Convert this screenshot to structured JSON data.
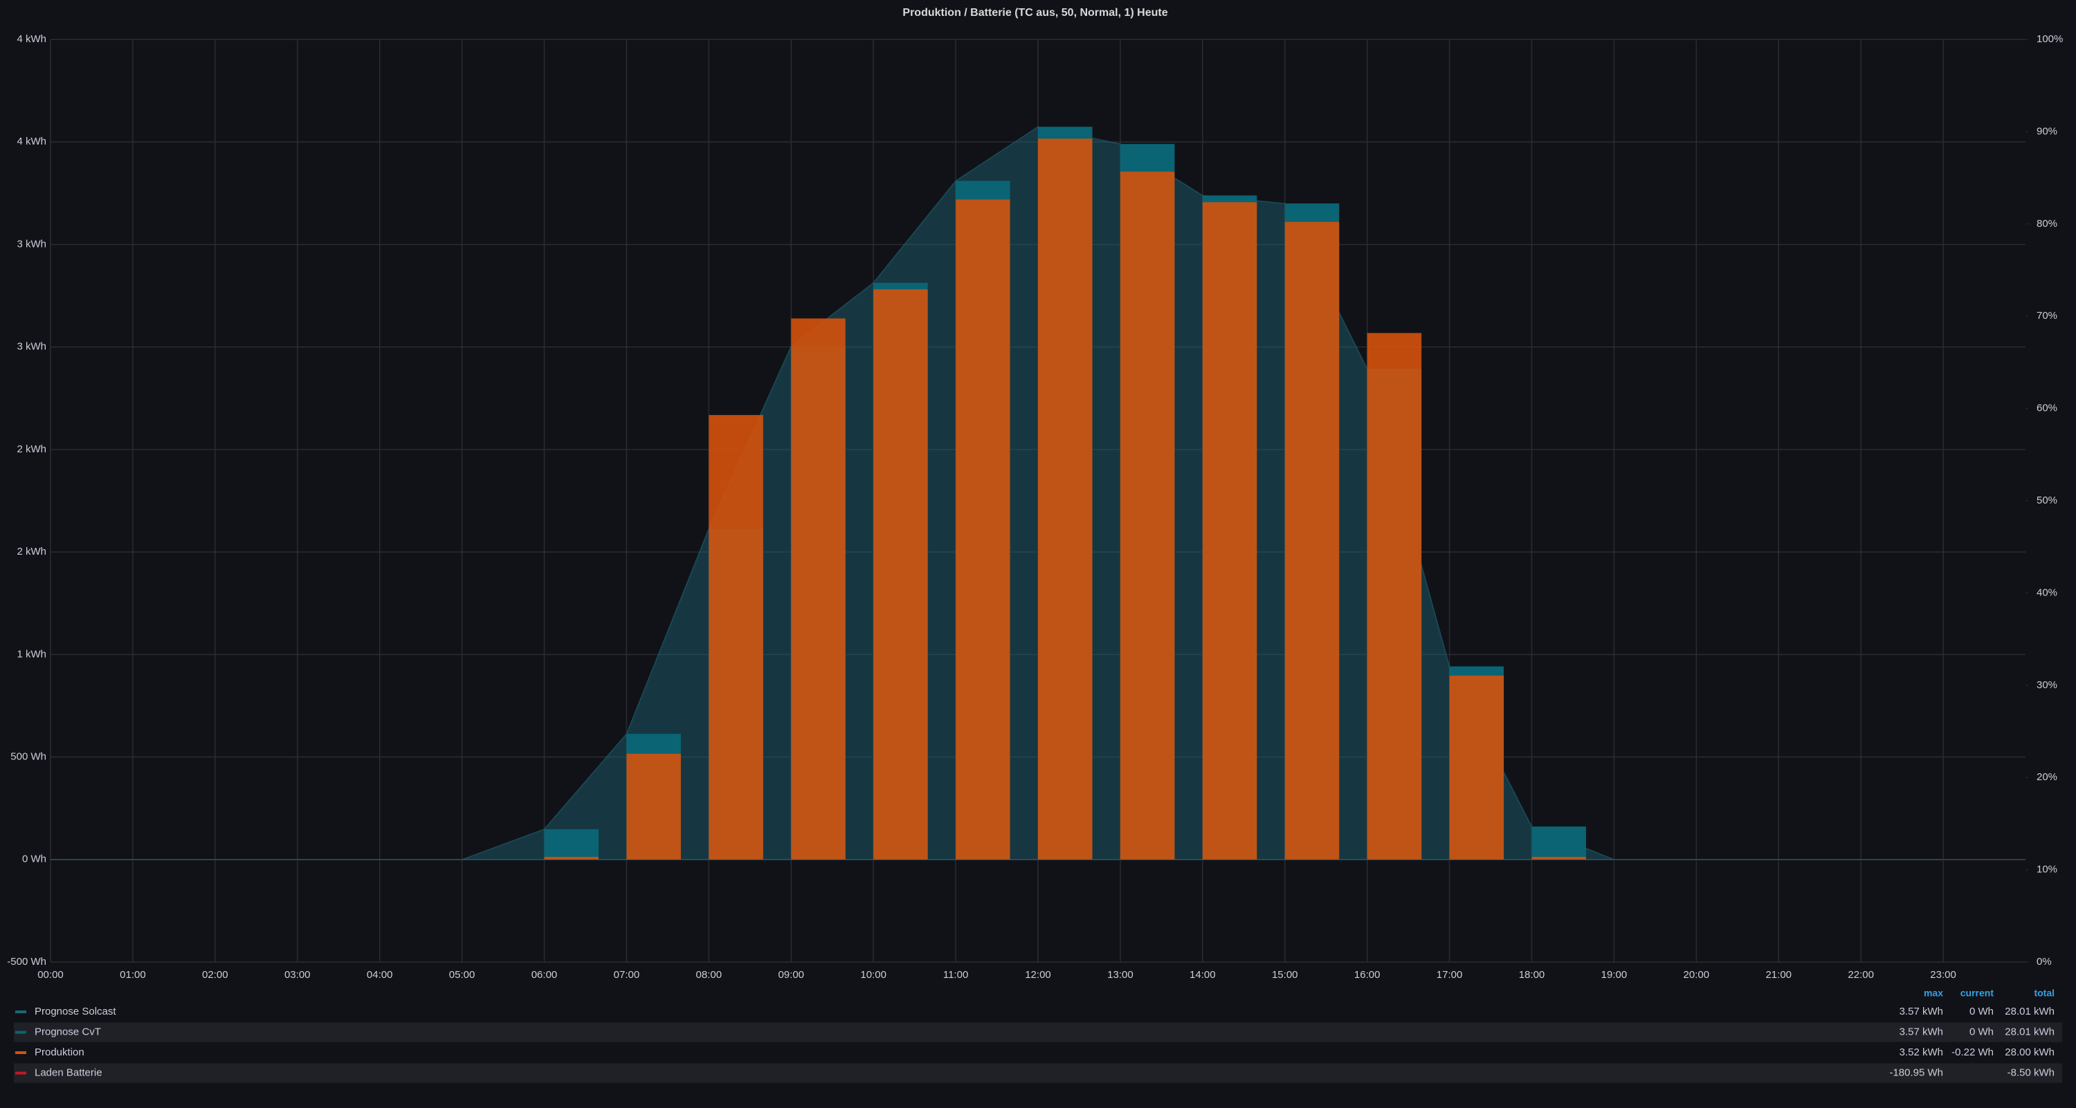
{
  "chart_data": {
    "type": "bar",
    "title": "Produktion / Batterie (TC aus, 50, Normal, 1) Heute",
    "x": [
      0,
      1,
      2,
      3,
      4,
      5,
      6,
      7,
      8,
      9,
      10,
      11,
      12,
      13,
      14,
      15,
      16,
      17,
      18,
      19,
      20,
      21,
      22,
      23
    ],
    "xlim": [
      0,
      24
    ],
    "xticks": [
      {
        "value": 0,
        "label": "00:00"
      },
      {
        "value": 1,
        "label": "01:00"
      },
      {
        "value": 2,
        "label": "02:00"
      },
      {
        "value": 3,
        "label": "03:00"
      },
      {
        "value": 4,
        "label": "04:00"
      },
      {
        "value": 5,
        "label": "05:00"
      },
      {
        "value": 6,
        "label": "06:00"
      },
      {
        "value": 7,
        "label": "07:00"
      },
      {
        "value": 8,
        "label": "08:00"
      },
      {
        "value": 9,
        "label": "09:00"
      },
      {
        "value": 10,
        "label": "10:00"
      },
      {
        "value": 11,
        "label": "11:00"
      },
      {
        "value": 12,
        "label": "12:00"
      },
      {
        "value": 13,
        "label": "13:00"
      },
      {
        "value": 14,
        "label": "14:00"
      },
      {
        "value": 15,
        "label": "15:00"
      },
      {
        "value": 16,
        "label": "16:00"
      },
      {
        "value": 17,
        "label": "17:00"
      },
      {
        "value": 18,
        "label": "18:00"
      },
      {
        "value": 19,
        "label": "19:00"
      },
      {
        "value": 20,
        "label": "20:00"
      },
      {
        "value": 21,
        "label": "21:00"
      },
      {
        "value": 22,
        "label": "22:00"
      },
      {
        "value": 23,
        "label": "23:00"
      }
    ],
    "ylim": [
      -500,
      4000
    ],
    "yticks": [
      {
        "value": -500,
        "label": "-500 Wh"
      },
      {
        "value": 0,
        "label": "0 Wh"
      },
      {
        "value": 500,
        "label": "500 Wh"
      },
      {
        "value": 1000,
        "label": "1 kWh"
      },
      {
        "value": 1500,
        "label": "2 kWh"
      },
      {
        "value": 2000,
        "label": "2 kWh"
      },
      {
        "value": 2500,
        "label": "3 kWh"
      },
      {
        "value": 3000,
        "label": "3 kWh"
      },
      {
        "value": 3500,
        "label": "4 kWh"
      },
      {
        "value": 4000,
        "label": "4 kWh"
      }
    ],
    "y2lim": [
      0,
      100
    ],
    "y2ticks": [
      {
        "value": 0,
        "label": "0%"
      },
      {
        "value": 10,
        "label": "10%"
      },
      {
        "value": 20,
        "label": "20%"
      },
      {
        "value": 30,
        "label": "30%"
      },
      {
        "value": 40,
        "label": "40%"
      },
      {
        "value": 50,
        "label": "50%"
      },
      {
        "value": 60,
        "label": "60%"
      },
      {
        "value": 70,
        "label": "70%"
      },
      {
        "value": 80,
        "label": "80%"
      },
      {
        "value": 90,
        "label": "90%"
      },
      {
        "value": 100,
        "label": "100%"
      }
    ],
    "grid": true,
    "legend_columns": [
      "max",
      "current",
      "total"
    ],
    "series": [
      {
        "name": "Prognose Solcast",
        "type": "area",
        "color": "#1c6678",
        "values": [
          0,
          0,
          0,
          0,
          0,
          0,
          148,
          613,
          1613,
          2503,
          2813,
          3310,
          3574,
          3490,
          3239,
          3200,
          2394,
          942,
          161,
          0,
          0,
          0,
          0,
          0
        ],
        "legend_values": [
          "3.57 kWh",
          "0 Wh",
          "28.01 kWh"
        ]
      },
      {
        "name": "Prognose CvT",
        "type": "bar",
        "color": "#0b6474",
        "values": [
          0,
          0,
          0,
          0,
          0,
          0,
          148,
          613,
          1613,
          2503,
          2813,
          3310,
          3574,
          3490,
          3239,
          3200,
          2394,
          942,
          161,
          0,
          0,
          0,
          0,
          0
        ],
        "legend_values": [
          "3.57 kWh",
          "0 Wh",
          "28.01 kWh"
        ]
      },
      {
        "name": "Produktion",
        "type": "bar",
        "color": "#d4520c",
        "values": [
          0,
          0,
          0,
          0,
          0,
          0,
          13,
          516,
          2168,
          2639,
          2781,
          3219,
          3516,
          3355,
          3206,
          3110,
          2568,
          897,
          13,
          0,
          0,
          0,
          0,
          0
        ],
        "legend_values": [
          "3.52 kWh",
          "-0.22 Wh",
          "28.00 kWh"
        ]
      },
      {
        "name": "Laden Batterie",
        "type": "hidden",
        "color": "#c4162a",
        "legend_values": [
          "-180.95 Wh",
          "",
          "-8.50 kWh"
        ]
      }
    ]
  }
}
